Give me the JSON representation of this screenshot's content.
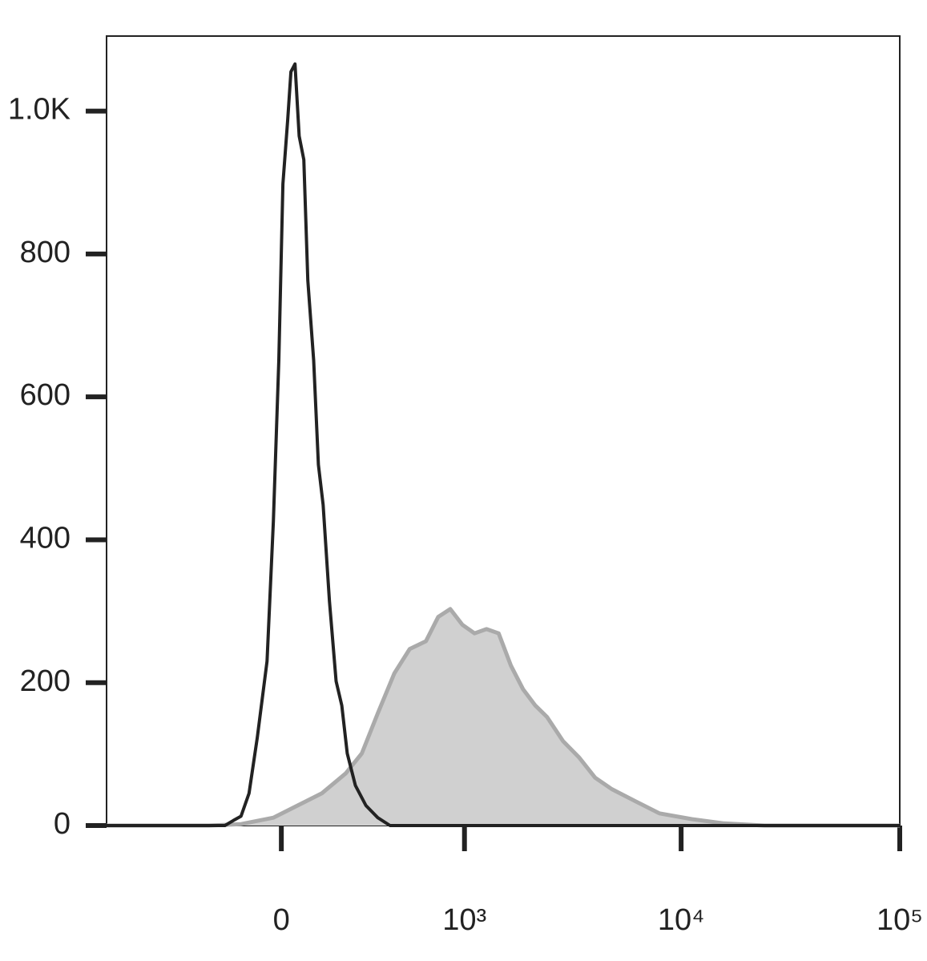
{
  "chart_data": {
    "type": "histogram_overlay",
    "xscale": "biexponential",
    "xlim": [
      -912,
      100000
    ],
    "ylim": [
      0,
      1105
    ],
    "xticks": [
      0,
      {
        "value": 1000,
        "label": "10³"
      },
      {
        "value": 10000,
        "label": "10⁴"
      },
      {
        "value": 100000,
        "label": "10⁵"
      }
    ],
    "yticks": [
      0,
      200,
      400,
      600,
      800,
      {
        "value": 1000,
        "label": "1.0K"
      }
    ],
    "series": [
      {
        "color": "#aaaaaa",
        "fill": "#d0d0d0",
        "x": [
          -912,
          -249,
          -130,
          -25,
          51,
          130,
          217,
          283,
          356,
          443,
          535,
          648,
          746,
          855,
          977,
          1117,
          1271,
          1449,
          1651,
          1880,
          2144,
          2427,
          2878,
          3415,
          4039,
          4811,
          6178,
          7960,
          11197,
          15711,
          24000,
          100000
        ],
        "values": [
          0,
          0,
          2,
          11,
          28,
          45,
          73,
          101,
          157,
          213,
          247,
          258,
          292,
          303,
          281,
          269,
          275,
          269,
          224,
          191,
          168,
          152,
          118,
          95,
          67,
          51,
          34,
          17,
          9,
          3,
          0,
          0
        ]
      },
      {
        "color": "#222222",
        "fill": "none",
        "x": [
          -912,
          -187,
          -157,
          -130,
          -103,
          -76,
          -45,
          -25,
          -8,
          5,
          20,
          30,
          43,
          56,
          71,
          84,
          103,
          119,
          135,
          157,
          181,
          202,
          223,
          256,
          301,
          356,
          419,
          1218,
          100000
        ],
        "values": [
          0,
          0,
          7,
          13,
          45,
          123,
          230,
          426,
          651,
          898,
          988,
          1055,
          1066,
          965,
          932,
          763,
          651,
          505,
          449,
          314,
          202,
          168,
          101,
          56,
          28,
          11,
          0,
          0,
          0
        ]
      }
    ]
  }
}
